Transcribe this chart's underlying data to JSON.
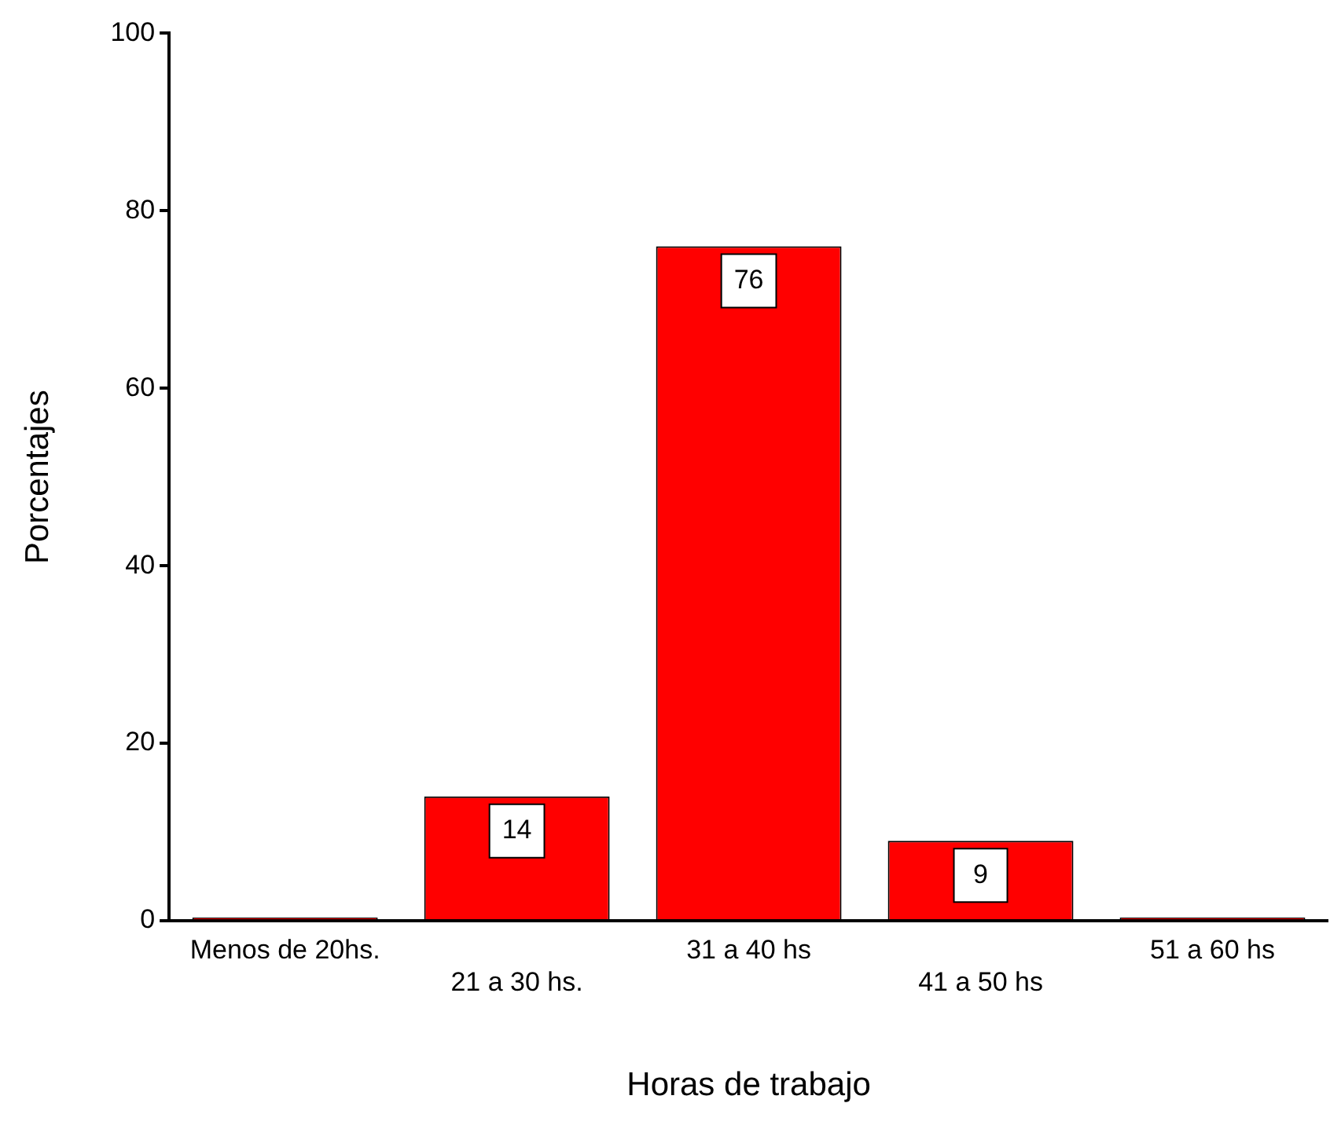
{
  "chart_data": {
    "type": "bar",
    "xlabel": "Horas de trabajo",
    "ylabel": "Porcentajes",
    "categories": [
      "Menos de 20hs.",
      "21 a 30 hs.",
      "31 a 40 hs",
      "41 a 50 hs",
      "51 a 60 hs"
    ],
    "values": [
      0,
      14,
      76,
      9,
      0
    ],
    "value_labels": [
      null,
      "14",
      "76",
      "9",
      null
    ],
    "color": "#ff0000",
    "ylim": [
      0,
      100
    ],
    "yticks": [
      0,
      20,
      40,
      60,
      80,
      100
    ],
    "grid": false,
    "legend": false
  }
}
